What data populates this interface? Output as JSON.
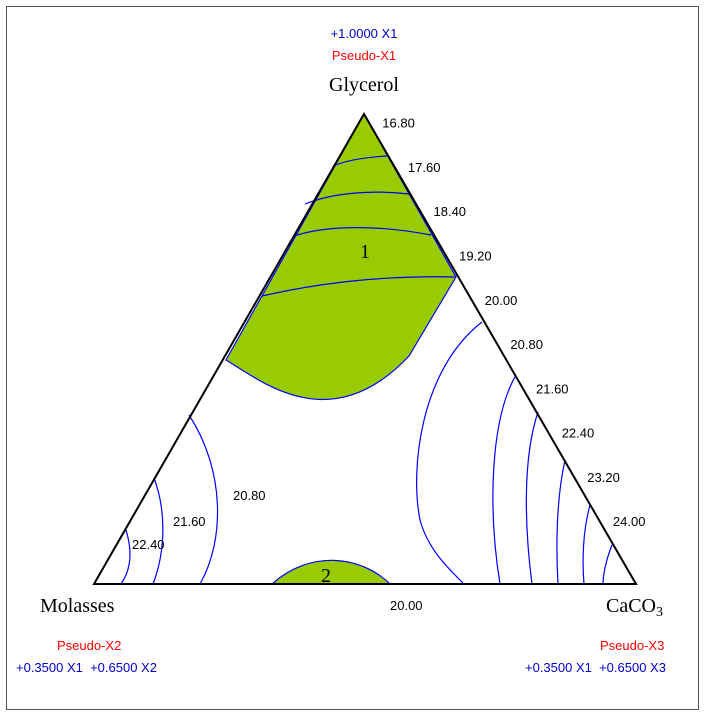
{
  "chart_data": {
    "type": "ternary-contour",
    "components": {
      "top": {
        "name": "Glycerol",
        "pseudo_label": "Pseudo-X1",
        "coefficients": "+1.0000 X1"
      },
      "left": {
        "name": "Molasses",
        "pseudo_label": "Pseudo-X2",
        "coefficients": "+0.3500 X1  +0.6500 X2"
      },
      "right": {
        "name": "CaCO",
        "name_subscript": "3",
        "pseudo_label": "Pseudo-X3",
        "coefficients": "+0.3500 X1  +0.6500 X3"
      }
    },
    "right_edge_contour_labels": [
      "16.80",
      "17.60",
      "18.40",
      "19.20",
      "20.00",
      "20.80",
      "21.60",
      "22.40",
      "23.20",
      "24.00"
    ],
    "interior_contour_labels": [
      {
        "text": "20.80"
      },
      {
        "text": "21.60"
      },
      {
        "text": "22.40"
      },
      {
        "text": "20.00"
      }
    ],
    "regions": [
      {
        "label": "1",
        "location": "near Glycerol vertex",
        "fill": "#99cc00"
      },
      {
        "label": "2",
        "location": "bottom edge, Molasses–CaCO3 side",
        "fill": "#99cc00"
      }
    ],
    "colors": {
      "contour": "#0000ff",
      "region_fill": "#99cc00",
      "pseudo_label": "#ff0000",
      "coefficient_label": "#0000cc"
    }
  }
}
